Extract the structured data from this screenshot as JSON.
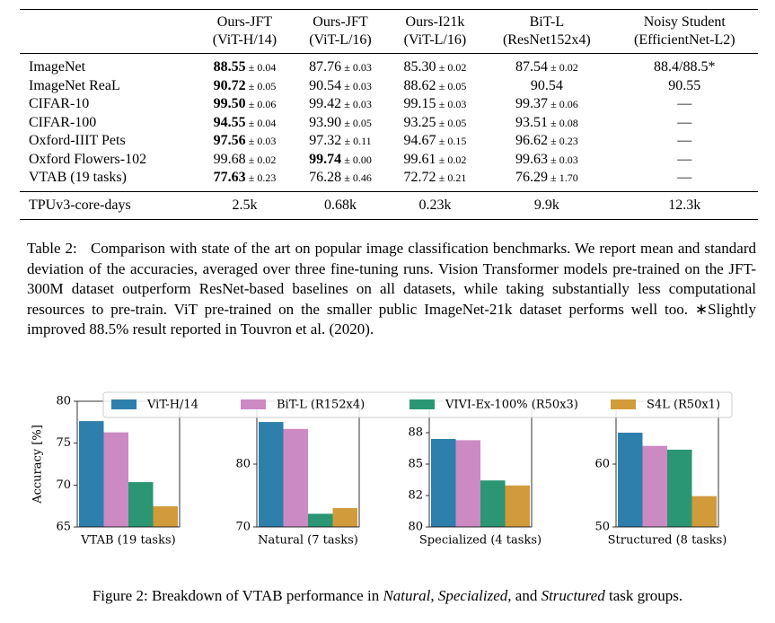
{
  "table": {
    "headers": [
      [
        "Ours-JFT",
        "(ViT-H/14)"
      ],
      [
        "Ours-JFT",
        "(ViT-L/16)"
      ],
      [
        "Ours-I21k",
        "(ViT-L/16)"
      ],
      [
        "BiT-L",
        "(ResNet152x4)"
      ],
      [
        "Noisy Student",
        "(EfficientNet-L2)"
      ]
    ],
    "rows": [
      {
        "label": "ImageNet",
        "cells": [
          {
            "mean": "88.55",
            "std": "± 0.04",
            "bold": true
          },
          {
            "mean": "87.76",
            "std": "± 0.03"
          },
          {
            "mean": "85.30",
            "std": "± 0.02"
          },
          {
            "mean": "87.54",
            "std": "± 0.02"
          },
          {
            "mean": "88.4/88.5*"
          }
        ]
      },
      {
        "label": "ImageNet ReaL",
        "cells": [
          {
            "mean": "90.72",
            "std": "± 0.05",
            "bold": true
          },
          {
            "mean": "90.54",
            "std": "± 0.03"
          },
          {
            "mean": "88.62",
            "std": "± 0.05"
          },
          {
            "mean": "90.54"
          },
          {
            "mean": "90.55"
          }
        ]
      },
      {
        "label": "CIFAR-10",
        "cells": [
          {
            "mean": "99.50",
            "std": "± 0.06",
            "bold": true
          },
          {
            "mean": "99.42",
            "std": "± 0.03"
          },
          {
            "mean": "99.15",
            "std": "± 0.03"
          },
          {
            "mean": "99.37",
            "std": "± 0.06"
          },
          {
            "mean": "—"
          }
        ]
      },
      {
        "label": "CIFAR-100",
        "cells": [
          {
            "mean": "94.55",
            "std": "± 0.04",
            "bold": true
          },
          {
            "mean": "93.90",
            "std": "± 0.05"
          },
          {
            "mean": "93.25",
            "std": "± 0.05"
          },
          {
            "mean": "93.51",
            "std": "± 0.08"
          },
          {
            "mean": "—"
          }
        ]
      },
      {
        "label": "Oxford-IIIT Pets",
        "cells": [
          {
            "mean": "97.56",
            "std": "± 0.03",
            "bold": true
          },
          {
            "mean": "97.32",
            "std": "± 0.11"
          },
          {
            "mean": "94.67",
            "std": "± 0.15"
          },
          {
            "mean": "96.62",
            "std": "± 0.23"
          },
          {
            "mean": "—"
          }
        ]
      },
      {
        "label": "Oxford Flowers-102",
        "cells": [
          {
            "mean": "99.68",
            "std": "± 0.02"
          },
          {
            "mean": "99.74",
            "std": "± 0.00",
            "bold": true
          },
          {
            "mean": "99.61",
            "std": "± 0.02"
          },
          {
            "mean": "99.63",
            "std": "± 0.03"
          },
          {
            "mean": "—"
          }
        ]
      },
      {
        "label": "VTAB (19 tasks)",
        "cells": [
          {
            "mean": "77.63",
            "std": "± 0.23",
            "bold": true
          },
          {
            "mean": "76.28",
            "std": "± 0.46"
          },
          {
            "mean": "72.72",
            "std": "± 0.21"
          },
          {
            "mean": "76.29",
            "std": "± 1.70"
          },
          {
            "mean": "—"
          }
        ]
      }
    ],
    "footer": {
      "label": "TPUv3-core-days",
      "cells": [
        "2.5k",
        "0.68k",
        "0.23k",
        "9.9k",
        "12.3k"
      ]
    }
  },
  "table_caption": {
    "label": "Table 2:",
    "text": "Comparison with state of the art on popular image classification benchmarks. We report mean and standard deviation of the accuracies, averaged over three fine-tuning runs. Vision Transformer models pre-trained on the JFT-300M dataset outperform ResNet-based baselines on all datasets, while taking substantially less computational resources to pre-train. ViT pre-trained on the smaller public ImageNet-21k dataset performs well too. ∗Slightly improved 88.5% result reported in Touvron et al. (2020)."
  },
  "chart_data": [
    {
      "type": "bar",
      "xlabel": "VTAB (19 tasks)",
      "ylabel": "Accuracy [%]",
      "ylim": [
        65,
        80
      ],
      "yticks": [
        65,
        70,
        75,
        80
      ],
      "series": [
        {
          "name": "ViT-H/14",
          "color": "#2e7fab",
          "values": [
            77.63
          ]
        },
        {
          "name": "BiT-L (R152x4)",
          "color": "#cc8ac3",
          "values": [
            76.29
          ]
        },
        {
          "name": "VIVI-Ex-100% (R50x3)",
          "color": "#2a9673",
          "values": [
            70.35
          ]
        },
        {
          "name": "S4L (R50x1)",
          "color": "#d19a3a",
          "values": [
            67.46
          ]
        }
      ]
    },
    {
      "type": "bar",
      "xlabel": "Natural (7 tasks)",
      "ylim": [
        70,
        90
      ],
      "yticks": [
        70,
        80
      ],
      "series": [
        {
          "color": "#2e7fab",
          "values": [
            86.7
          ]
        },
        {
          "color": "#cc8ac3",
          "values": [
            85.6
          ]
        },
        {
          "color": "#2a9673",
          "values": [
            72.1
          ]
        },
        {
          "color": "#d19a3a",
          "values": [
            73.0
          ]
        }
      ]
    },
    {
      "type": "bar",
      "xlabel": "Specialized (4 tasks)",
      "ylim": [
        80,
        90
      ],
      "yticks": [
        80,
        {
          "value": 82.5,
          "label": "82"
        },
        85,
        {
          "value": 87.5,
          "label": "88"
        }
      ],
      "series": [
        {
          "color": "#2e7fab",
          "values": [
            87.0
          ]
        },
        {
          "color": "#cc8ac3",
          "values": [
            86.9
          ]
        },
        {
          "color": "#2a9673",
          "values": [
            83.7
          ]
        },
        {
          "color": "#d19a3a",
          "values": [
            83.3
          ]
        }
      ]
    },
    {
      "type": "bar",
      "xlabel": "Structured (8 tasks)",
      "ylim": [
        50,
        70
      ],
      "yticks": [
        50,
        60
      ],
      "series": [
        {
          "color": "#2e7fab",
          "values": [
            65.0
          ]
        },
        {
          "color": "#cc8ac3",
          "values": [
            62.9
          ]
        },
        {
          "color": "#2a9673",
          "values": [
            62.3
          ]
        },
        {
          "color": "#d19a3a",
          "values": [
            54.9
          ]
        }
      ]
    }
  ],
  "figure_caption": {
    "parts": [
      "Figure 2: Breakdown of VTAB performance in ",
      "Natural",
      ", ",
      "Specialized",
      ", and ",
      "Structured",
      " task groups."
    ]
  }
}
